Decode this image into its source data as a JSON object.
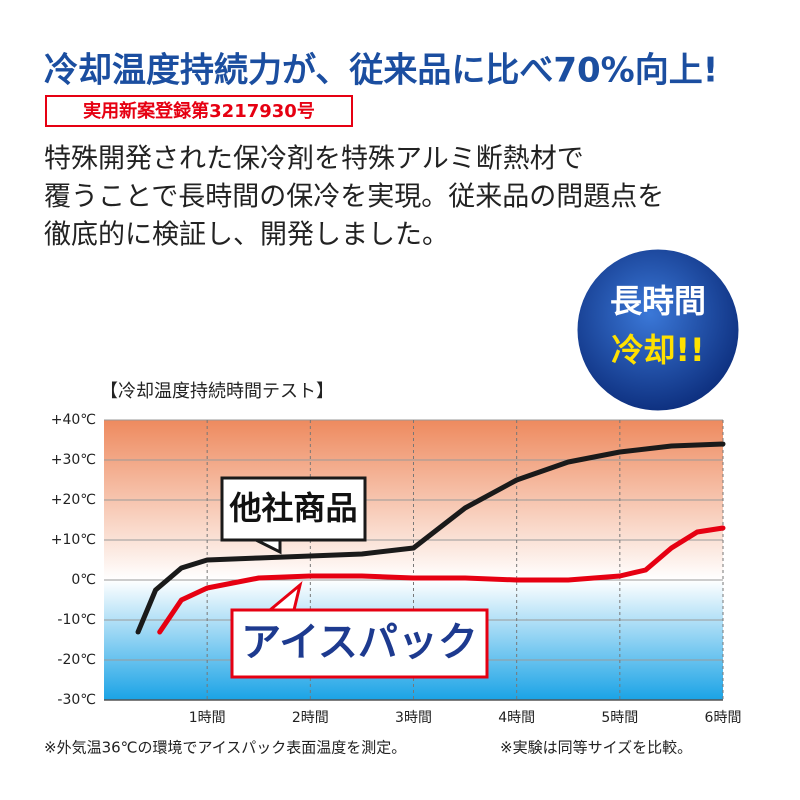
{
  "headline": "冷却温度持続力が、従来品に比べ70%向上!",
  "registration": "実用新案登録第3217930号",
  "description": [
    "特殊開発された保冷剤を特殊アルミ断熱材で",
    "覆うことで長時間の保冷を実現。従来品の問題点を",
    "徹底的に検証し、開発しました。"
  ],
  "badge": [
    "長時間",
    "冷却!!"
  ],
  "footnotes": [
    "※外気温36℃の環境でアイスパック表面温度を測定。",
    "※実験は同等サイズを比較。"
  ],
  "chart_data": {
    "type": "line",
    "title": "【冷却温度持続時間テスト】",
    "xlim": [
      0,
      6
    ],
    "xticks": [
      {
        "value": 1,
        "label": "1時間"
      },
      {
        "value": 2,
        "label": "2時間"
      },
      {
        "value": 3,
        "label": "3時間"
      },
      {
        "value": 4,
        "label": "4時間"
      },
      {
        "value": 5,
        "label": "5時間"
      },
      {
        "value": 6,
        "label": "6時間"
      }
    ],
    "ylim": [
      -30,
      40
    ],
    "yticks": [
      {
        "value": 40,
        "label": "+40℃"
      },
      {
        "value": 30,
        "label": "+30℃"
      },
      {
        "value": 20,
        "label": "+20℃"
      },
      {
        "value": 10,
        "label": "+10℃"
      },
      {
        "value": 0,
        "label": "0℃"
      },
      {
        "value": -10,
        "label": "-10℃"
      },
      {
        "value": -20,
        "label": "-20℃"
      },
      {
        "value": -30,
        "label": "-30℃"
      }
    ],
    "grid": true,
    "series": [
      {
        "name": "他社商品",
        "color": "#1a1a1a",
        "x": [
          0.33,
          0.5,
          0.75,
          1,
          1.5,
          2,
          2.5,
          3,
          3.5,
          4,
          4.5,
          5,
          5.5,
          6
        ],
        "values": [
          -13,
          -2.5,
          3,
          5,
          5.5,
          6,
          6.5,
          8,
          18,
          25,
          29.5,
          32,
          33.5,
          34
        ]
      },
      {
        "name": "アイスパック",
        "color": "#e60012",
        "x": [
          0.54,
          0.75,
          1,
          1.5,
          2,
          2.5,
          3,
          3.5,
          4,
          4.5,
          5,
          5.25,
          5.5,
          5.75,
          6
        ],
        "values": [
          -13,
          -5,
          -2,
          0.5,
          1,
          1,
          0.5,
          0.5,
          0,
          0,
          1,
          2.5,
          8,
          12,
          13
        ]
      }
    ]
  }
}
